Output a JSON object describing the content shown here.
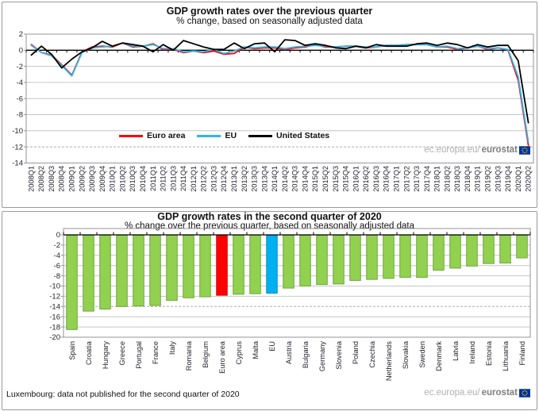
{
  "watermark": {
    "prefix": "ec.europa.eu/",
    "bold": "eurostat"
  },
  "footnote": {
    "text": "Luxembourg: data not published for the second quarter of 2020"
  },
  "colors": {
    "grid": "#c6c6c6",
    "grid_dashed": "#adadad",
    "plot_border": "#959595",
    "axis": "#000000",
    "tick_text": "#24242f",
    "bar_default": "#92d14f",
    "bar_default_border": "#6da53a",
    "bar_euro_area": "#ff0000",
    "bar_euro_area_border": "#cc0000",
    "bar_eu": "#00b0f0",
    "bar_eu_border": "#0090c8",
    "flag_blue": "#003399",
    "flag_stars": "#ffcc00"
  },
  "chart_data": [
    {
      "type": "line",
      "title": "GDP growth rates over the previous quarter",
      "subtitle": "% change, based on seasonally adjusted data",
      "ylim": [
        -14,
        2
      ],
      "yticks": [
        2,
        0,
        -2,
        -4,
        -6,
        -8,
        -10,
        -12,
        -14
      ],
      "dashed_gridline": -12,
      "grid": "horizontal",
      "legend_position": "bottom-center-inside",
      "x": [
        "2008Q1",
        "2008Q2",
        "2008Q3",
        "2008Q4",
        "2009Q1",
        "2009Q2",
        "2009Q3",
        "2009Q4",
        "2010Q1",
        "2010Q2",
        "2010Q3",
        "2010Q4",
        "2011Q1",
        "2011Q2",
        "2011Q3",
        "2011Q4",
        "2012Q1",
        "2012Q2",
        "2012Q3",
        "2012Q4",
        "2013Q1",
        "2013Q2",
        "2013Q3",
        "2013Q4",
        "2014Q1",
        "2014Q2",
        "2014Q3",
        "2014Q4",
        "2015Q1",
        "2015Q2",
        "2015Q3",
        "2015Q4",
        "2016Q1",
        "2016Q2",
        "2016Q3",
        "2016Q4",
        "2017Q1",
        "2017Q2",
        "2017Q3",
        "2017Q4",
        "2018Q1",
        "2018Q2",
        "2018Q3",
        "2018Q4",
        "2019Q1",
        "2019Q2",
        "2019Q3",
        "2019Q4",
        "2020Q1",
        "2020Q2"
      ],
      "series": [
        {
          "name": "Euro area",
          "color": "#ff0000",
          "values": [
            0.7,
            -0.3,
            -0.6,
            -1.8,
            -3.1,
            -0.2,
            0.4,
            0.5,
            0.4,
            0.9,
            0.4,
            0.5,
            0.8,
            0.1,
            0.1,
            -0.3,
            -0.1,
            -0.3,
            -0.1,
            -0.5,
            -0.4,
            0.4,
            0.2,
            0.3,
            0.3,
            0.1,
            0.3,
            0.4,
            0.7,
            0.4,
            0.4,
            0.5,
            0.5,
            0.3,
            0.4,
            0.6,
            0.6,
            0.7,
            0.7,
            0.7,
            0.4,
            0.4,
            0.1,
            0.3,
            0.5,
            0.1,
            0.3,
            0.0,
            -3.7,
            -11.8
          ]
        },
        {
          "name": "EU",
          "color": "#2eb6ea",
          "values": [
            0.6,
            -0.3,
            -0.7,
            -1.9,
            -3.2,
            -0.3,
            0.3,
            0.4,
            0.5,
            0.9,
            0.5,
            0.5,
            0.7,
            0.2,
            0.2,
            -0.2,
            -0.1,
            -0.2,
            0.1,
            -0.4,
            -0.1,
            0.4,
            0.3,
            0.4,
            0.4,
            0.2,
            0.4,
            0.5,
            0.6,
            0.5,
            0.4,
            0.5,
            0.5,
            0.4,
            0.4,
            0.6,
            0.6,
            0.7,
            0.7,
            0.7,
            0.4,
            0.5,
            0.2,
            0.3,
            0.5,
            0.2,
            0.3,
            0.1,
            -3.3,
            -11.4
          ]
        },
        {
          "name": "United States",
          "color": "#000000",
          "values": [
            -0.6,
            0.5,
            -0.5,
            -2.2,
            -1.1,
            -0.2,
            0.3,
            1.1,
            0.5,
            0.9,
            0.7,
            0.5,
            -0.2,
            0.7,
            0.0,
            1.2,
            0.8,
            0.4,
            0.1,
            0.1,
            0.9,
            0.2,
            0.8,
            0.9,
            -0.2,
            1.3,
            1.2,
            0.6,
            0.8,
            0.6,
            0.3,
            0.2,
            0.5,
            0.3,
            0.7,
            0.5,
            0.5,
            0.5,
            0.8,
            0.9,
            0.6,
            0.9,
            0.7,
            0.3,
            0.7,
            0.4,
            0.6,
            0.6,
            -1.3,
            -9.0
          ]
        }
      ]
    },
    {
      "type": "bar",
      "title": "GDP growth rates in the second quarter of 2020",
      "subtitle": "% change over the previous quarter, based on seasonally adjusted data",
      "ylim": [
        -20,
        0
      ],
      "yticks": [
        0,
        -2,
        -4,
        -6,
        -8,
        -10,
        -12,
        -14,
        -16,
        -18,
        -20
      ],
      "dashed_gridline": -14,
      "grid": "horizontal",
      "categories": [
        "Spain",
        "Croatia",
        "Hungary",
        "Greece",
        "Portugal",
        "France",
        "Italy",
        "Romania",
        "Belgium",
        "Euro area",
        "Cyprus",
        "Malta",
        "EU",
        "Austria",
        "Bulgaria",
        "Germany",
        "Slovenia",
        "Poland",
        "Czechia",
        "Netherlands",
        "Slovakia",
        "Sweden",
        "Denmark",
        "Latvia",
        "Ireland",
        "Estonia",
        "Lithuania",
        "Finland"
      ],
      "values": [
        -18.5,
        -14.9,
        -14.5,
        -14.0,
        -13.9,
        -13.8,
        -12.8,
        -12.3,
        -12.1,
        -11.8,
        -11.6,
        -11.5,
        -11.4,
        -10.4,
        -10.0,
        -9.7,
        -9.6,
        -8.9,
        -8.7,
        -8.5,
        -8.3,
        -8.3,
        -6.9,
        -6.5,
        -6.1,
        -5.6,
        -5.5,
        -4.5
      ],
      "highlight_bars": [
        {
          "label": "Euro area",
          "color": "#ff0000"
        },
        {
          "label": "EU",
          "color": "#00b0f0"
        }
      ]
    }
  ]
}
